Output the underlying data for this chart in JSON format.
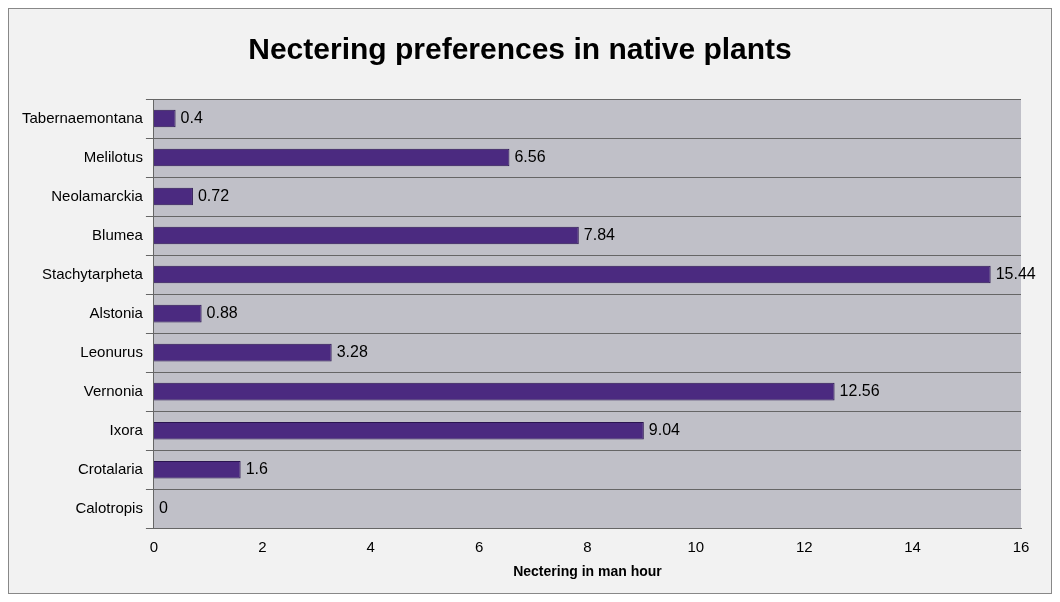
{
  "chart_data": {
    "type": "bar",
    "orientation": "horizontal",
    "title": "Nectering preferences in native plants",
    "xlabel": "Nectering in man hour",
    "categories": [
      "Tabernaemontana",
      "Melilotus",
      "Neolamarckia",
      "Blumea",
      "Stachytarpheta",
      "Alstonia",
      "Leonurus",
      "Vernonia",
      "Ixora",
      "Crotalaria",
      "Calotropis"
    ],
    "values": [
      0.4,
      6.56,
      0.72,
      7.84,
      15.44,
      0.88,
      3.28,
      12.56,
      9.04,
      1.6,
      0
    ],
    "color": "#4b2a80",
    "xlim": [
      0,
      16
    ],
    "xticks": [
      0,
      2,
      4,
      6,
      8,
      10,
      12,
      14,
      16
    ],
    "grid": "y",
    "data_labels": true,
    "legend": false
  }
}
